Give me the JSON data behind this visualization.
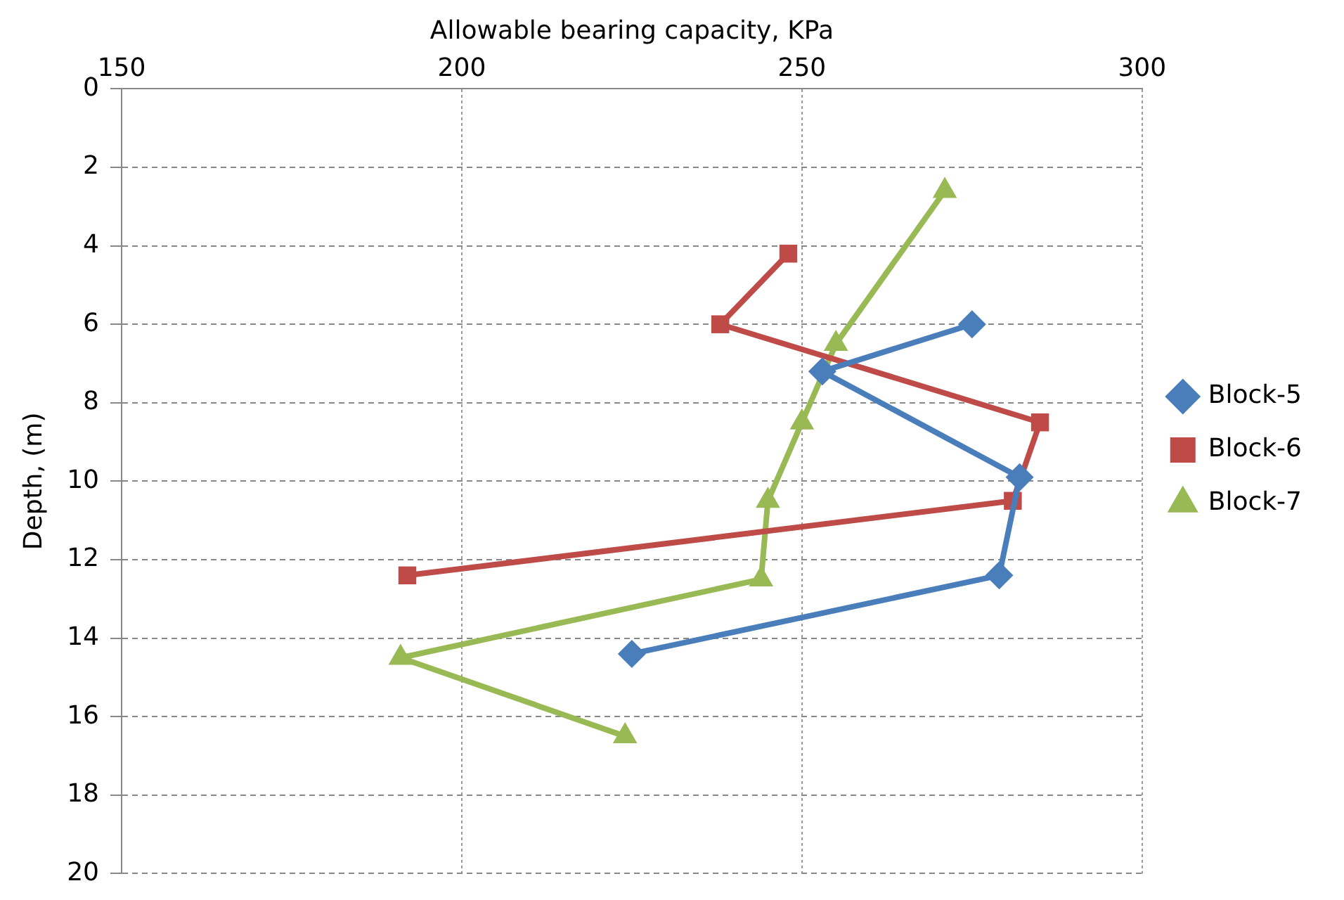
{
  "chart_data": {
    "type": "line",
    "xlabel": "Allowable bearing capacity, KPa",
    "ylabel": "Depth, (m)",
    "xlim": [
      150,
      300
    ],
    "xticks": [
      150,
      200,
      250,
      300
    ],
    "ylim": [
      20,
      0
    ],
    "yticks": [
      0,
      2,
      4,
      6,
      8,
      10,
      12,
      14,
      16,
      18,
      20
    ],
    "grid": true,
    "legend": "right",
    "line_style": "solid",
    "series": [
      {
        "name": "Block-5",
        "color": "#4a7ebb",
        "marker": "diamond",
        "x": [
          275,
          253,
          282,
          279,
          225
        ],
        "values": [
          6.0,
          7.2,
          9.9,
          12.4,
          14.4
        ]
      },
      {
        "name": "Block-6",
        "color": "#be4b48",
        "marker": "square",
        "x": [
          248,
          238,
          285,
          281,
          192
        ],
        "values": [
          4.2,
          6.0,
          8.5,
          10.5,
          12.4
        ]
      },
      {
        "name": "Block-7",
        "color": "#98b954",
        "marker": "triangle",
        "x": [
          271,
          255,
          250,
          245,
          244,
          191,
          224
        ],
        "values": [
          2.6,
          6.5,
          8.5,
          10.5,
          12.5,
          14.5,
          16.5
        ]
      }
    ]
  }
}
